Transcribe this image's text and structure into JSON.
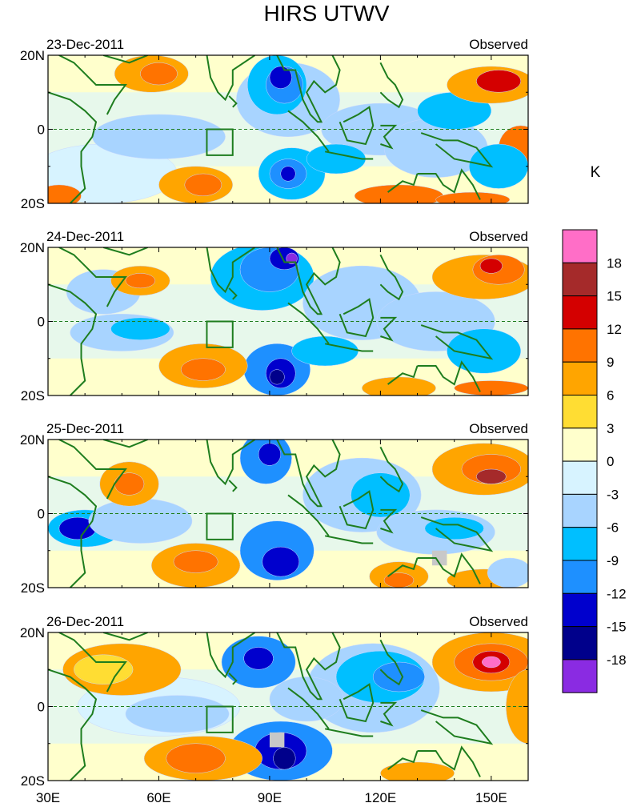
{
  "title": "HIRS UTWV",
  "colorbar": {
    "unit": "K",
    "levels": [
      "18",
      "15",
      "12",
      "9",
      "6",
      "3",
      "0",
      "-3",
      "-6",
      "-9",
      "-12",
      "-15",
      "-18"
    ],
    "colors": [
      "#ff6ec7",
      "#a52a2a",
      "#d40000",
      "#ff7300",
      "#ffa500",
      "#ffdd33",
      "#ffffcc",
      "#d7f3ff",
      "#a8d4ff",
      "#00bfff",
      "#1e90ff",
      "#0000cd",
      "#00008b",
      "#8a2be2"
    ]
  },
  "axes": {
    "lat_labels": [
      "20N",
      "0",
      "20S"
    ],
    "lon_labels": [
      "30E",
      "60E",
      "90E",
      "120E",
      "150E"
    ],
    "lon_range": [
      30,
      160
    ],
    "lat_range": [
      -20,
      20
    ]
  },
  "panels": [
    {
      "date": "23-Dec-2011",
      "label": "Observed"
    },
    {
      "date": "24-Dec-2011",
      "label": "Observed"
    },
    {
      "date": "25-Dec-2011",
      "label": "Observed"
    },
    {
      "date": "26-Dec-2011",
      "label": "Observed"
    }
  ]
}
